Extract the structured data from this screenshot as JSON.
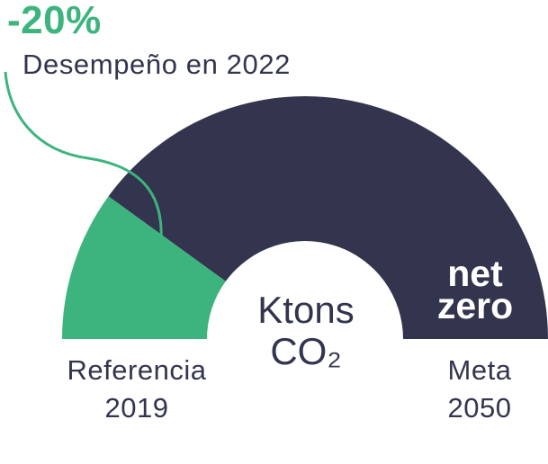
{
  "chart_data": {
    "type": "gauge",
    "reduction_label": "-20%",
    "performance_label": "Desempeño en 2022",
    "achieved_fraction": 0.2,
    "unit_line1": "Ktons",
    "unit_line2": "CO₂",
    "goal_line1": "net",
    "goal_line2": "zero",
    "start_label_line1": "Referencia",
    "start_label_line2": "2019",
    "end_label_line1": "Meta",
    "end_label_line2": "2050",
    "colors": {
      "achieved": "#3db47e",
      "remaining": "#33354f",
      "text": "#33354f"
    }
  }
}
